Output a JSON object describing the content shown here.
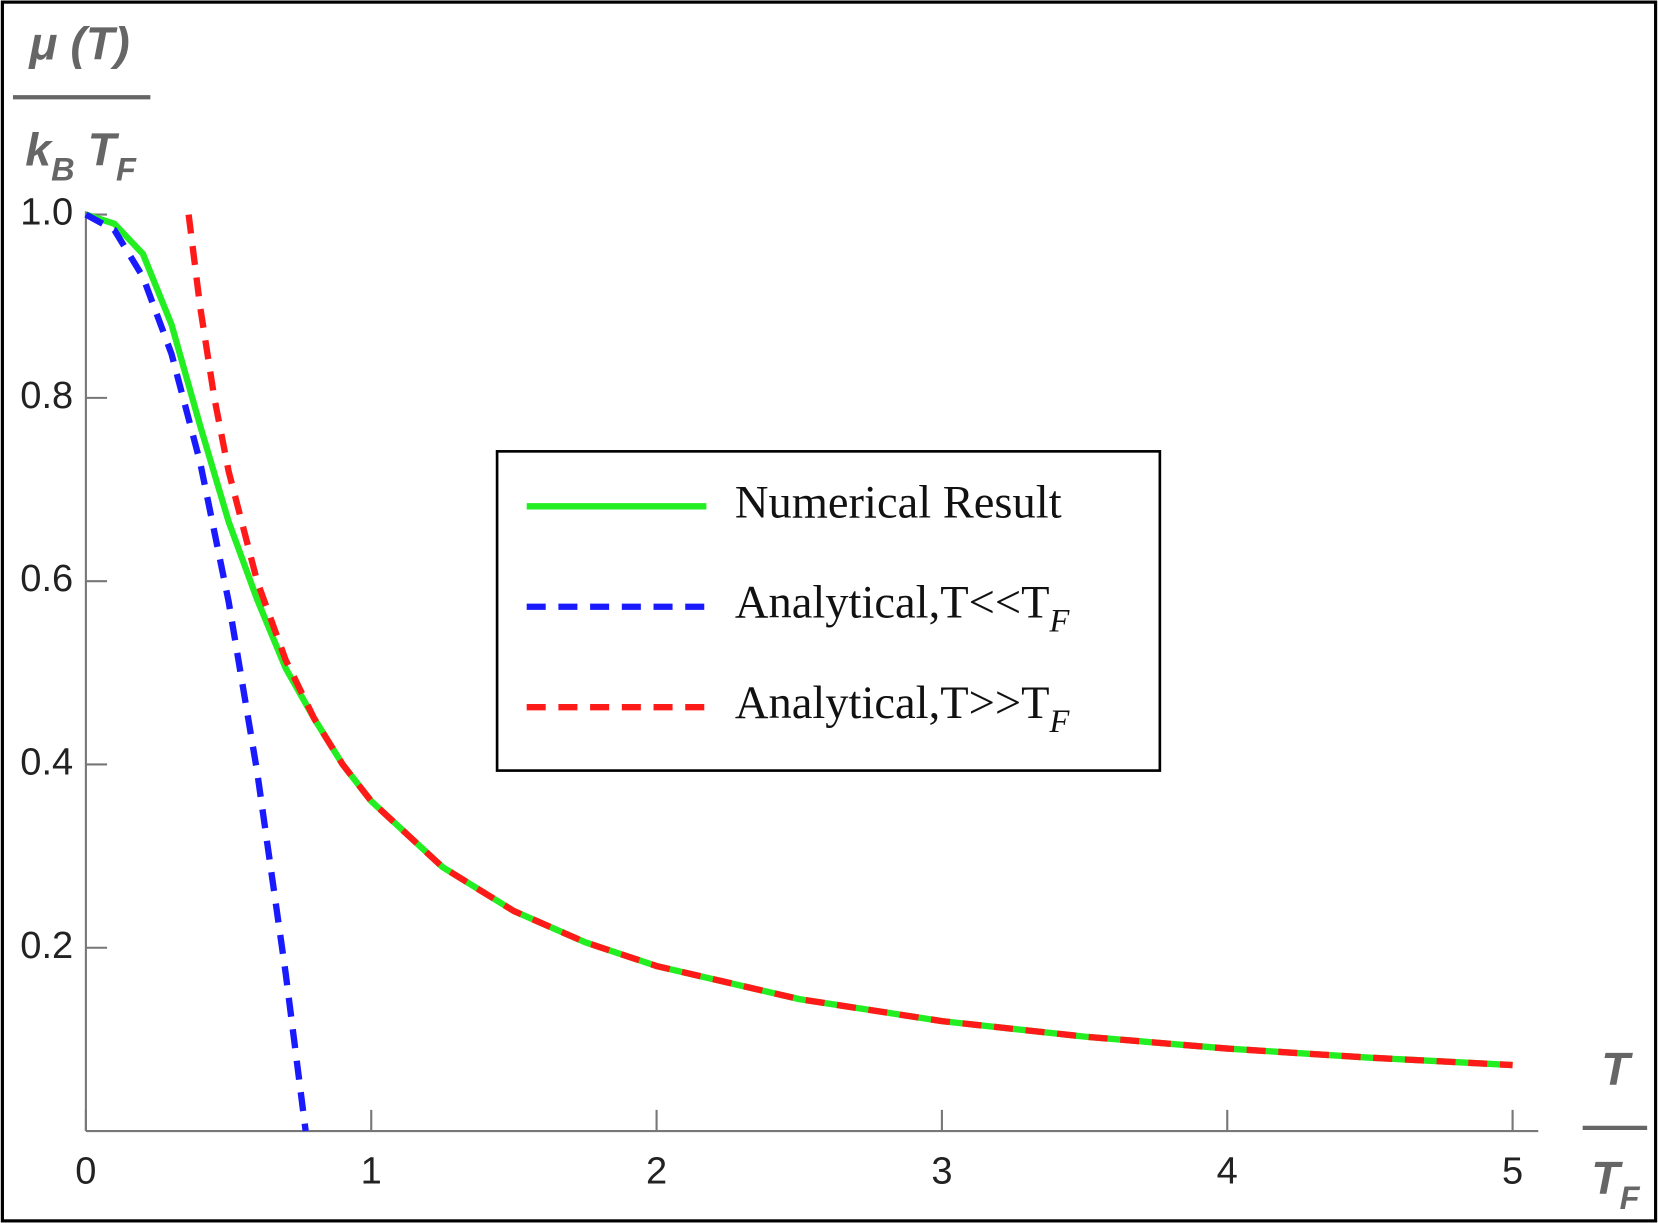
{
  "chart_data": {
    "type": "line",
    "ylabel": {
      "numerator": [
        {
          "text": "μ (T)"
        }
      ],
      "denominator": [
        {
          "text": "k"
        },
        {
          "text": "B",
          "sub": true
        },
        {
          "text": " T"
        },
        {
          "text": "F",
          "sub": true
        }
      ]
    },
    "xlabel": {
      "numerator": [
        {
          "text": "T"
        }
      ],
      "denominator": [
        {
          "text": "T"
        },
        {
          "text": "F",
          "sub": true
        }
      ]
    },
    "xlim": [
      0,
      5.09
    ],
    "ylim": [
      0,
      1.0
    ],
    "xticks": [
      0,
      1,
      2,
      3,
      4,
      5
    ],
    "yticks": [
      0.2,
      0.4,
      0.6,
      0.8,
      {
        "value": 1.0,
        "label": "1.0"
      }
    ],
    "legend": "center",
    "series": [
      {
        "name": [
          {
            "text": "Numerical Result"
          }
        ],
        "color": "#22ee22",
        "dashed": false,
        "x": [
          0,
          0.1,
          0.2,
          0.3,
          0.4,
          0.5,
          0.6,
          0.7,
          0.8,
          0.9,
          1.0,
          1.25,
          1.5,
          1.75,
          2.0,
          2.5,
          3.0,
          3.5,
          4.0,
          4.5,
          5.0
        ],
        "values": [
          1.0,
          0.99,
          0.957,
          0.88,
          0.77,
          0.665,
          0.58,
          0.505,
          0.45,
          0.4,
          0.36,
          0.288,
          0.24,
          0.206,
          0.18,
          0.144,
          0.12,
          0.103,
          0.09,
          0.08,
          0.072
        ]
      },
      {
        "name": [
          {
            "text": "Analytical,T<<T"
          },
          {
            "text": "F",
            "sub": true,
            "italic": true
          }
        ],
        "color": "#1a1aff",
        "dashed": true,
        "x": [
          0,
          0.1,
          0.2,
          0.3,
          0.4,
          0.5,
          0.6,
          0.7,
          0.77
        ],
        "values": [
          1.0,
          0.983,
          0.932,
          0.848,
          0.73,
          0.578,
          0.392,
          0.172,
          0.0
        ]
      },
      {
        "name": [
          {
            "text": "Analytical,T>>T"
          },
          {
            "text": "F",
            "sub": true,
            "italic": true
          }
        ],
        "color": "#ff1a1a",
        "dashed": true,
        "x": [
          0.36,
          0.4,
          0.45,
          0.5,
          0.6,
          0.7,
          0.8,
          0.9,
          1.0,
          1.25,
          1.5,
          1.75,
          2.0,
          2.5,
          3.0,
          3.5,
          4.0,
          4.5,
          5.0
        ],
        "values": [
          1.0,
          0.9,
          0.8,
          0.72,
          0.6,
          0.514,
          0.45,
          0.4,
          0.36,
          0.288,
          0.24,
          0.206,
          0.18,
          0.144,
          0.12,
          0.103,
          0.09,
          0.08,
          0.072
        ]
      }
    ]
  }
}
